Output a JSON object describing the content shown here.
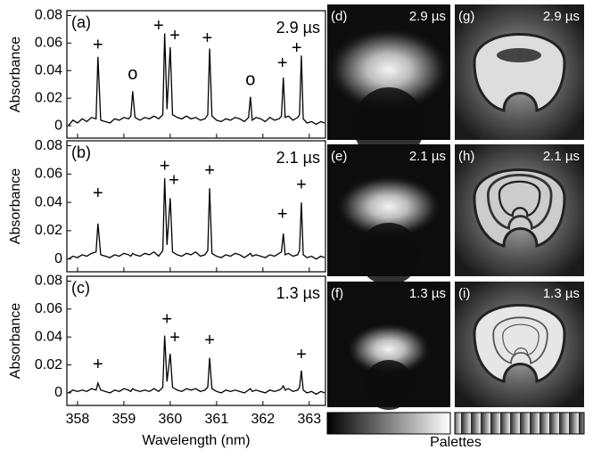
{
  "chart_data": [
    {
      "type": "line",
      "panel_label": "(a)",
      "time_label": "2.9 µs",
      "ylabel": "Absorbance",
      "color": "#000000",
      "xlim": [
        357.77,
        363.35
      ],
      "ylim": [
        -0.009,
        0.0835
      ],
      "yticks": [
        0,
        0.02,
        0.04,
        0.06,
        0.08
      ],
      "xticks": [
        358,
        359,
        360,
        361,
        362,
        363
      ],
      "x": [
        357.8,
        357.9,
        358.0,
        358.1,
        358.2,
        358.3,
        358.4,
        358.44,
        358.5,
        358.6,
        358.7,
        358.8,
        358.9,
        359.0,
        359.1,
        359.15,
        359.19,
        359.24,
        359.35,
        359.45,
        359.55,
        359.65,
        359.75,
        359.84,
        359.88,
        359.93,
        360.0,
        360.05,
        360.15,
        360.25,
        360.35,
        360.45,
        360.55,
        360.65,
        360.75,
        360.81,
        360.85,
        360.9,
        361.0,
        361.1,
        361.2,
        361.3,
        361.4,
        361.5,
        361.6,
        361.69,
        361.73,
        361.77,
        361.85,
        361.95,
        362.05,
        362.15,
        362.25,
        362.35,
        362.4,
        362.44,
        362.48,
        362.55,
        362.65,
        362.75,
        362.79,
        362.83,
        362.87,
        362.95,
        363.05,
        363.15,
        363.25,
        363.33
      ],
      "values": [
        0.0,
        0.004,
        0.002,
        0.005,
        0.003,
        0.006,
        0.005,
        0.05,
        0.004,
        0.003,
        0.002,
        0.005,
        0.004,
        0.006,
        0.005,
        0.007,
        0.025,
        0.006,
        0.004,
        0.006,
        0.005,
        0.007,
        0.005,
        0.008,
        0.067,
        0.012,
        0.057,
        0.008,
        0.006,
        0.005,
        0.007,
        0.005,
        0.006,
        0.004,
        0.005,
        0.008,
        0.056,
        0.007,
        0.004,
        0.003,
        0.005,
        0.004,
        0.006,
        0.005,
        0.003,
        0.006,
        0.021,
        0.004,
        0.006,
        0.005,
        0.003,
        0.006,
        0.004,
        0.005,
        0.007,
        0.035,
        0.006,
        0.007,
        0.004,
        0.006,
        0.008,
        0.051,
        0.005,
        0.002,
        0.003,
        0.001,
        0.003,
        0.002
      ],
      "annotations": [
        {
          "text": "+",
          "x": 358.44,
          "y": 0.058
        },
        {
          "text": "o",
          "x": 359.19,
          "y": 0.037
        },
        {
          "text": "+",
          "x": 359.75,
          "y": 0.072
        },
        {
          "text": "+",
          "x": 360.1,
          "y": 0.065
        },
        {
          "text": "+",
          "x": 360.8,
          "y": 0.063
        },
        {
          "text": "o",
          "x": 361.73,
          "y": 0.033
        },
        {
          "text": "+",
          "x": 362.42,
          "y": 0.045
        },
        {
          "text": "+",
          "x": 362.73,
          "y": 0.056
        }
      ]
    },
    {
      "type": "line",
      "panel_label": "(b)",
      "time_label": "2.1 µs",
      "ylabel": "Absorbance",
      "color": "#000000",
      "xlim": [
        357.77,
        363.35
      ],
      "ylim": [
        -0.009,
        0.0835
      ],
      "yticks": [
        0,
        0.02,
        0.04,
        0.06,
        0.08
      ],
      "xticks": [
        358,
        359,
        360,
        361,
        362,
        363
      ],
      "x": [
        357.8,
        357.9,
        358.0,
        358.1,
        358.2,
        358.3,
        358.4,
        358.44,
        358.5,
        358.6,
        358.7,
        358.8,
        358.9,
        359.0,
        359.1,
        359.15,
        359.19,
        359.24,
        359.35,
        359.45,
        359.55,
        359.65,
        359.75,
        359.84,
        359.88,
        359.93,
        360.0,
        360.05,
        360.15,
        360.25,
        360.35,
        360.45,
        360.55,
        360.65,
        360.75,
        360.81,
        360.85,
        360.9,
        361.0,
        361.1,
        361.2,
        361.3,
        361.4,
        361.5,
        361.6,
        361.69,
        361.73,
        361.77,
        361.85,
        361.95,
        362.05,
        362.15,
        362.25,
        362.35,
        362.4,
        362.44,
        362.48,
        362.55,
        362.65,
        362.75,
        362.79,
        362.83,
        362.87,
        362.95,
        363.05,
        363.15,
        363.25,
        363.33
      ],
      "values": [
        0.0,
        0.002,
        0.001,
        0.003,
        0.002,
        0.004,
        0.005,
        0.025,
        0.003,
        0.002,
        0.001,
        0.003,
        0.002,
        0.004,
        0.003,
        0.002,
        0.004,
        0.003,
        0.002,
        0.004,
        0.003,
        0.005,
        0.002,
        0.006,
        0.057,
        0.01,
        0.043,
        0.005,
        0.003,
        0.002,
        0.004,
        0.003,
        0.005,
        0.002,
        0.003,
        0.006,
        0.05,
        0.004,
        0.002,
        0.001,
        0.003,
        0.002,
        0.004,
        0.003,
        0.001,
        0.003,
        0.004,
        0.002,
        0.003,
        0.002,
        0.001,
        0.003,
        0.002,
        0.004,
        0.005,
        0.018,
        0.003,
        0.004,
        0.002,
        0.003,
        0.006,
        0.04,
        0.003,
        0.001,
        0.002,
        0.0,
        0.002,
        0.001
      ],
      "annotations": [
        {
          "text": "+",
          "x": 358.44,
          "y": 0.046
        },
        {
          "text": "+",
          "x": 359.88,
          "y": 0.065
        },
        {
          "text": "+",
          "x": 360.08,
          "y": 0.055
        },
        {
          "text": "+",
          "x": 360.85,
          "y": 0.062
        },
        {
          "text": "+",
          "x": 362.42,
          "y": 0.031
        },
        {
          "text": "+",
          "x": 362.83,
          "y": 0.052
        }
      ]
    },
    {
      "type": "line",
      "panel_label": "(c)",
      "time_label": "1.3 µs",
      "ylabel": "Absorbance",
      "xlabel": "Wavelength (nm)",
      "color": "#000000",
      "xlim": [
        357.77,
        363.35
      ],
      "ylim": [
        -0.009,
        0.0835
      ],
      "yticks": [
        0,
        0.02,
        0.04,
        0.06,
        0.08
      ],
      "xticks": [
        358,
        359,
        360,
        361,
        362,
        363
      ],
      "x": [
        357.8,
        357.9,
        358.0,
        358.1,
        358.2,
        358.3,
        358.4,
        358.44,
        358.5,
        358.6,
        358.7,
        358.8,
        358.9,
        359.0,
        359.1,
        359.15,
        359.19,
        359.24,
        359.35,
        359.45,
        359.55,
        359.65,
        359.75,
        359.84,
        359.88,
        359.93,
        360.0,
        360.05,
        360.15,
        360.25,
        360.35,
        360.45,
        360.55,
        360.65,
        360.75,
        360.81,
        360.85,
        360.9,
        361.0,
        361.1,
        361.2,
        361.3,
        361.4,
        361.5,
        361.6,
        361.69,
        361.73,
        361.77,
        361.85,
        361.95,
        362.05,
        362.15,
        362.25,
        362.35,
        362.4,
        362.44,
        362.48,
        362.55,
        362.65,
        362.75,
        362.79,
        362.83,
        362.87,
        362.95,
        363.05,
        363.15,
        363.25,
        363.33
      ],
      "values": [
        0.0,
        0.002,
        0.001,
        0.002,
        0.001,
        0.003,
        0.002,
        0.007,
        0.002,
        0.001,
        0.0,
        0.002,
        0.001,
        0.003,
        0.002,
        0.001,
        0.003,
        0.002,
        0.001,
        0.002,
        0.001,
        0.003,
        0.001,
        0.004,
        0.041,
        0.008,
        0.028,
        0.004,
        0.002,
        0.001,
        0.003,
        0.002,
        0.003,
        0.001,
        0.002,
        0.004,
        0.025,
        0.003,
        0.001,
        0.0,
        0.002,
        0.001,
        0.002,
        0.001,
        0.0,
        0.002,
        0.003,
        0.001,
        0.002,
        0.001,
        0.0,
        0.002,
        0.001,
        0.002,
        0.003,
        0.005,
        0.002,
        0.003,
        0.001,
        0.002,
        0.004,
        0.016,
        0.002,
        0.0,
        0.001,
        -0.001,
        0.001,
        0.0
      ],
      "annotations": [
        {
          "text": "+",
          "x": 358.44,
          "y": 0.02
        },
        {
          "text": "+",
          "x": 359.93,
          "y": 0.052
        },
        {
          "text": "+",
          "x": 360.1,
          "y": 0.039
        },
        {
          "text": "+",
          "x": 360.85,
          "y": 0.037
        },
        {
          "text": "+",
          "x": 362.83,
          "y": 0.027
        }
      ]
    }
  ],
  "images": [
    {
      "label": "(d)",
      "time": "2.9 µs"
    },
    {
      "label": "(g)",
      "time": "2.9 µs"
    },
    {
      "label": "(e)",
      "time": "2.1 µs"
    },
    {
      "label": "(h)",
      "time": "2.1 µs"
    },
    {
      "label": "(f)",
      "time": "1.3 µs"
    },
    {
      "label": "(i)",
      "time": "1.3 µs"
    }
  ],
  "palettes": {
    "label": "Palettes"
  }
}
